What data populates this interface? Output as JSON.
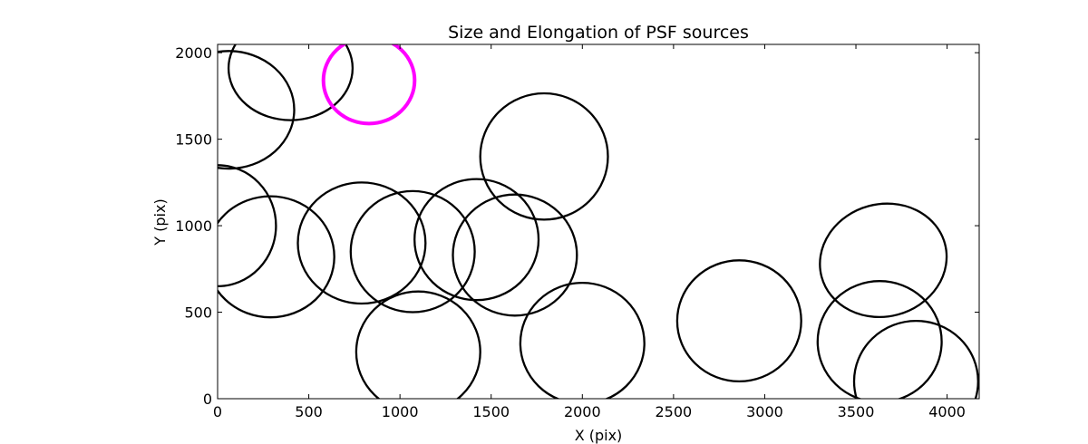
{
  "chart_data": {
    "type": "scatter",
    "title": "Size and Elongation of PSF sources",
    "xlabel": "X (pix)",
    "ylabel": "Y (pix)",
    "xlim": [
      0,
      4176
    ],
    "ylim": [
      0,
      2048
    ],
    "xticks": [
      0,
      500,
      1000,
      1500,
      2000,
      2500,
      3000,
      3500,
      4000
    ],
    "yticks": [
      0,
      500,
      1000,
      1500,
      2000
    ],
    "grid": false,
    "legend": "none",
    "marker": "ellipse",
    "colors": {
      "default": "#000000",
      "highlight": "#ff00ff"
    },
    "points": [
      {
        "x": 60,
        "y": 1670,
        "semi_x": 360,
        "semi_y": 340
      },
      {
        "x": 400,
        "y": 1910,
        "semi_x": 340,
        "semi_y": 300
      },
      {
        "x": 830,
        "y": 1840,
        "semi_x": 250,
        "semi_y": 250,
        "highlight": true
      },
      {
        "x": 1790,
        "y": 1400,
        "semi_x": 350,
        "semi_y": 365
      },
      {
        "x": 0,
        "y": 1000,
        "semi_x": 320,
        "semi_y": 350
      },
      {
        "x": 290,
        "y": 820,
        "semi_x": 350,
        "semi_y": 350
      },
      {
        "x": 790,
        "y": 900,
        "semi_x": 350,
        "semi_y": 350
      },
      {
        "x": 1070,
        "y": 850,
        "semi_x": 340,
        "semi_y": 350
      },
      {
        "x": 1420,
        "y": 920,
        "semi_x": 340,
        "semi_y": 350
      },
      {
        "x": 1630,
        "y": 830,
        "semi_x": 340,
        "semi_y": 350
      },
      {
        "x": 1100,
        "y": 270,
        "semi_x": 340,
        "semi_y": 350
      },
      {
        "x": 2000,
        "y": 320,
        "semi_x": 340,
        "semi_y": 350
      },
      {
        "x": 2860,
        "y": 450,
        "semi_x": 340,
        "semi_y": 350
      },
      {
        "x": 3650,
        "y": 800,
        "semi_x": 350,
        "semi_y": 325,
        "rotation": -15
      },
      {
        "x": 3630,
        "y": 330,
        "semi_x": 340,
        "semi_y": 350
      },
      {
        "x": 3830,
        "y": 100,
        "semi_x": 340,
        "semi_y": 350
      }
    ]
  }
}
